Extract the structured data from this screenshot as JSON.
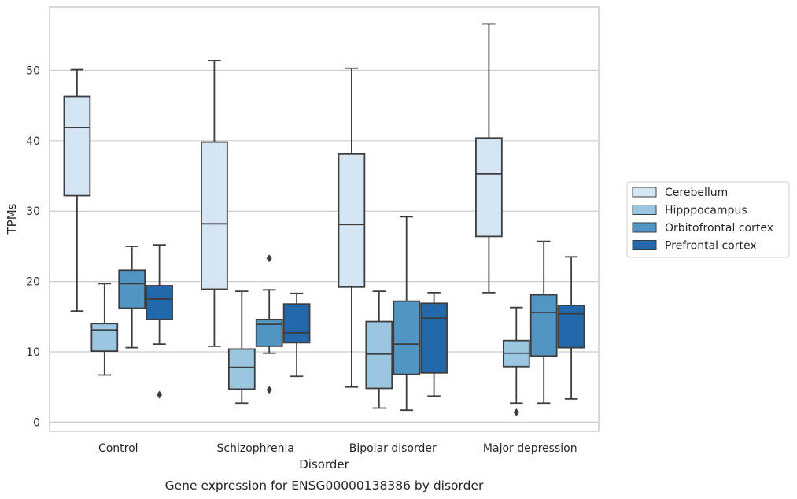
{
  "chart_data": {
    "type": "box",
    "caption": "Gene expression for ENSG00000138386 by disorder",
    "xlabel": "Disorder",
    "ylabel": "TPMs",
    "ylim": [
      -1.3,
      59
    ],
    "yticks": [
      0,
      10,
      20,
      30,
      40,
      50
    ],
    "grid": true,
    "legend_position": "outside-right",
    "categories": [
      "Control",
      "Schizophrenia",
      "Bipolar disorder",
      "Major depression"
    ],
    "series": [
      {
        "name": "Cerebellum",
        "color": "#d6e5f4",
        "boxes": [
          {
            "whisker_low": 15.8,
            "q1": 32.2,
            "median": 41.9,
            "q3": 46.3,
            "whisker_high": 50.1,
            "outliers": []
          },
          {
            "whisker_low": 10.8,
            "q1": 18.9,
            "median": 28.2,
            "q3": 39.8,
            "whisker_high": 51.4,
            "outliers": []
          },
          {
            "whisker_low": 5.0,
            "q1": 19.2,
            "median": 28.1,
            "q3": 38.1,
            "whisker_high": 50.3,
            "outliers": []
          },
          {
            "whisker_low": 18.4,
            "q1": 26.4,
            "median": 35.3,
            "q3": 40.4,
            "whisker_high": 56.6,
            "outliers": []
          }
        ]
      },
      {
        "name": "Hipppocampus",
        "color": "#9bc6e0",
        "boxes": [
          {
            "whisker_low": 6.7,
            "q1": 10.1,
            "median": 13.1,
            "q3": 14.0,
            "whisker_high": 19.7,
            "outliers": []
          },
          {
            "whisker_low": 2.7,
            "q1": 4.7,
            "median": 7.8,
            "q3": 10.4,
            "whisker_high": 18.6,
            "outliers": []
          },
          {
            "whisker_low": 2.0,
            "q1": 4.8,
            "median": 9.7,
            "q3": 14.3,
            "whisker_high": 18.6,
            "outliers": []
          },
          {
            "whisker_low": 2.7,
            "q1": 7.9,
            "median": 9.8,
            "q3": 11.6,
            "whisker_high": 16.3,
            "outliers": [
              1.4
            ]
          }
        ]
      },
      {
        "name": "Orbitofrontal cortex",
        "color": "#5195c5",
        "boxes": [
          {
            "whisker_low": 10.6,
            "q1": 16.2,
            "median": 19.7,
            "q3": 21.6,
            "whisker_high": 25.0,
            "outliers": []
          },
          {
            "whisker_low": 9.8,
            "q1": 10.8,
            "median": 13.9,
            "q3": 14.6,
            "whisker_high": 18.8,
            "outliers": [
              23.3,
              4.6
            ]
          },
          {
            "whisker_low": 1.7,
            "q1": 6.8,
            "median": 11.1,
            "q3": 17.2,
            "whisker_high": 29.2,
            "outliers": []
          },
          {
            "whisker_low": 2.7,
            "q1": 9.4,
            "median": 15.6,
            "q3": 18.1,
            "whisker_high": 25.7,
            "outliers": []
          }
        ]
      },
      {
        "name": "Prefrontal cortex",
        "color": "#2268aa",
        "boxes": [
          {
            "whisker_low": 11.1,
            "q1": 14.6,
            "median": 17.5,
            "q3": 19.4,
            "whisker_high": 25.2,
            "outliers": [
              3.9
            ]
          },
          {
            "whisker_low": 6.5,
            "q1": 11.3,
            "median": 12.7,
            "q3": 16.8,
            "whisker_high": 18.3,
            "outliers": []
          },
          {
            "whisker_low": 3.7,
            "q1": 7.0,
            "median": 14.8,
            "q3": 16.9,
            "whisker_high": 18.4,
            "outliers": []
          },
          {
            "whisker_low": 3.3,
            "q1": 10.6,
            "median": 15.4,
            "q3": 16.6,
            "whisker_high": 23.5,
            "outliers": []
          }
        ]
      }
    ]
  }
}
